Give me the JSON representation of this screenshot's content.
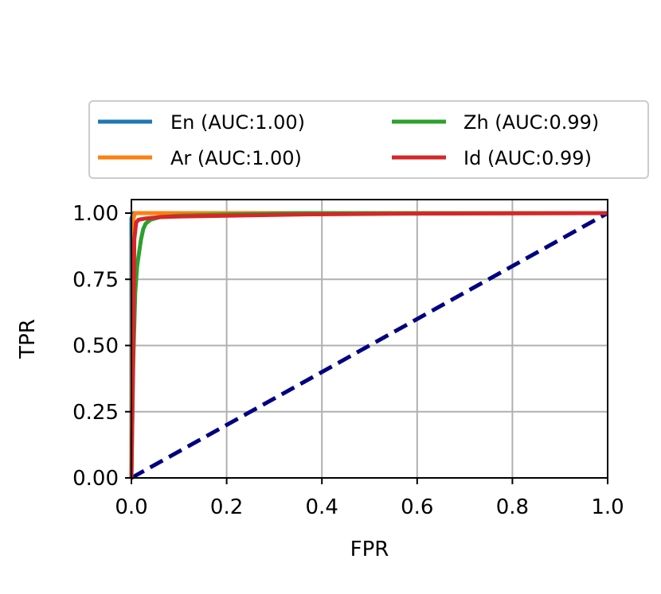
{
  "chart_data": {
    "type": "line",
    "xlabel": "FPR",
    "ylabel": "TPR",
    "xlim": [
      0.0,
      1.0
    ],
    "ylim": [
      0.0,
      1.05
    ],
    "x_ticks": [
      "0.0",
      "0.2",
      "0.4",
      "0.6",
      "0.8",
      "1.0"
    ],
    "y_ticks": [
      "0.00",
      "0.25",
      "0.50",
      "0.75",
      "1.00"
    ],
    "grid": true,
    "legend_position": "top (above plot), 2 columns",
    "series": [
      {
        "name": "En (AUC:1.00)",
        "color": "#1f77b4",
        "x": [
          0.0,
          0.0,
          0.003,
          0.005,
          1.0
        ],
        "y": [
          0.0,
          0.98,
          0.995,
          1.0,
          1.0
        ]
      },
      {
        "name": "Ar (AUC:1.00)",
        "color": "#ff7f0e",
        "x": [
          0.0,
          0.002,
          0.004,
          0.008,
          1.0
        ],
        "y": [
          0.0,
          0.9,
          0.98,
          1.0,
          1.0
        ]
      },
      {
        "name": "Zh (AUC:0.99)",
        "color": "#2ca02c",
        "x": [
          0.0,
          0.004,
          0.008,
          0.012,
          0.016,
          0.02,
          0.025,
          0.03,
          0.04,
          0.06,
          0.1,
          0.2,
          0.35,
          1.0
        ],
        "y": [
          0.0,
          0.45,
          0.7,
          0.8,
          0.85,
          0.9,
          0.94,
          0.96,
          0.975,
          0.985,
          0.99,
          0.995,
          1.0,
          1.0
        ]
      },
      {
        "name": "Id (AUC:0.99)",
        "color": "#d62728",
        "x": [
          0.0,
          0.002,
          0.004,
          0.006,
          0.01,
          0.015,
          0.03,
          0.06,
          0.1,
          0.2,
          0.35,
          0.55,
          1.0
        ],
        "y": [
          0.0,
          0.25,
          0.5,
          0.9,
          0.965,
          0.975,
          0.98,
          0.985,
          0.987,
          0.99,
          0.995,
          0.998,
          1.0
        ]
      }
    ],
    "reference_line": {
      "color": "#000080",
      "style": "dashed",
      "x": [
        0.0,
        1.0
      ],
      "y": [
        0.0,
        1.0
      ]
    }
  }
}
